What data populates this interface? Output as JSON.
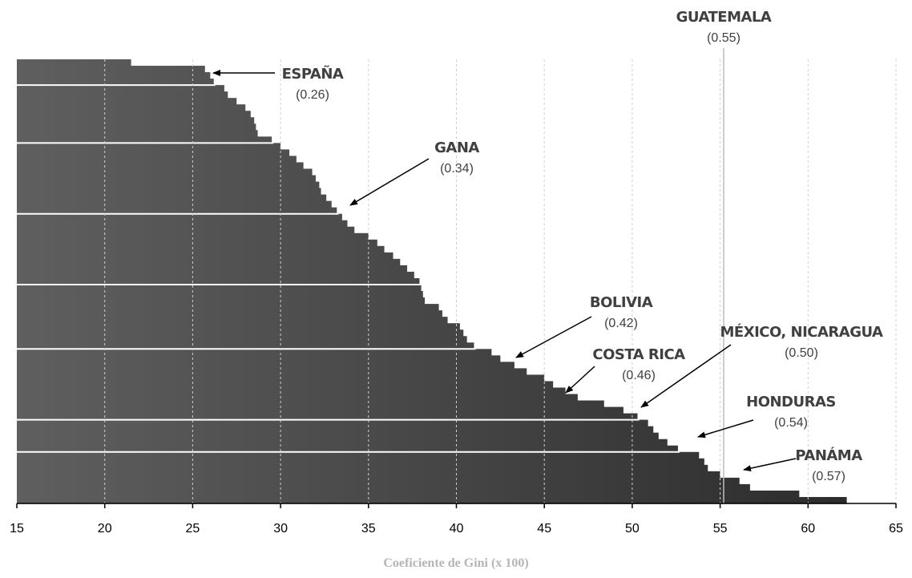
{
  "chart_data": {
    "type": "bar",
    "orientation": "horizontal",
    "xlabel": "Coeficiente de Gini (x 100)",
    "xlim": [
      15,
      65
    ],
    "x_ticks": [
      15,
      20,
      25,
      30,
      35,
      40,
      45,
      50,
      55,
      60,
      65
    ],
    "grid": "vertical-dashed",
    "values": [
      21.5,
      25.7,
      26.0,
      26.2,
      26.8,
      27.0,
      27.5,
      28.0,
      28.3,
      28.5,
      28.6,
      28.7,
      29.5,
      30.0,
      30.5,
      30.9,
      31.3,
      31.8,
      32.0,
      32.2,
      32.3,
      32.6,
      32.9,
      33.2,
      33.5,
      33.8,
      34.2,
      35.0,
      35.5,
      35.9,
      36.4,
      36.8,
      37.2,
      37.6,
      37.9,
      38.0,
      38.1,
      38.2,
      39.0,
      39.2,
      39.5,
      40.2,
      40.4,
      40.6,
      41.0,
      42.0,
      42.5,
      43.3,
      44.0,
      45.0,
      45.5,
      46.2,
      46.9,
      48.4,
      49.5,
      50.3,
      50.9,
      51.2,
      51.5,
      52.0,
      52.6,
      53.8,
      54.1,
      54.3,
      55.0,
      56.1,
      56.7,
      59.5,
      62.2
    ],
    "series_style": "gradient-gray"
  },
  "annotations": [
    {
      "name": "ESPAÑA",
      "value": "(0.26)"
    },
    {
      "name": "GANA",
      "value": "(0.34)"
    },
    {
      "name": "GUATEMALA",
      "value": "(0.55)"
    },
    {
      "name": "BOLIVIA",
      "value": "(0.42)"
    },
    {
      "name": "COSTA RICA",
      "value": "(0.46)"
    },
    {
      "name": "MÉXICO, NICARAGUA",
      "value": "(0.50)"
    },
    {
      "name": "HONDURAS",
      "value": "(0.54)"
    },
    {
      "name": "PANÁMA",
      "value": "(0.57)"
    }
  ]
}
